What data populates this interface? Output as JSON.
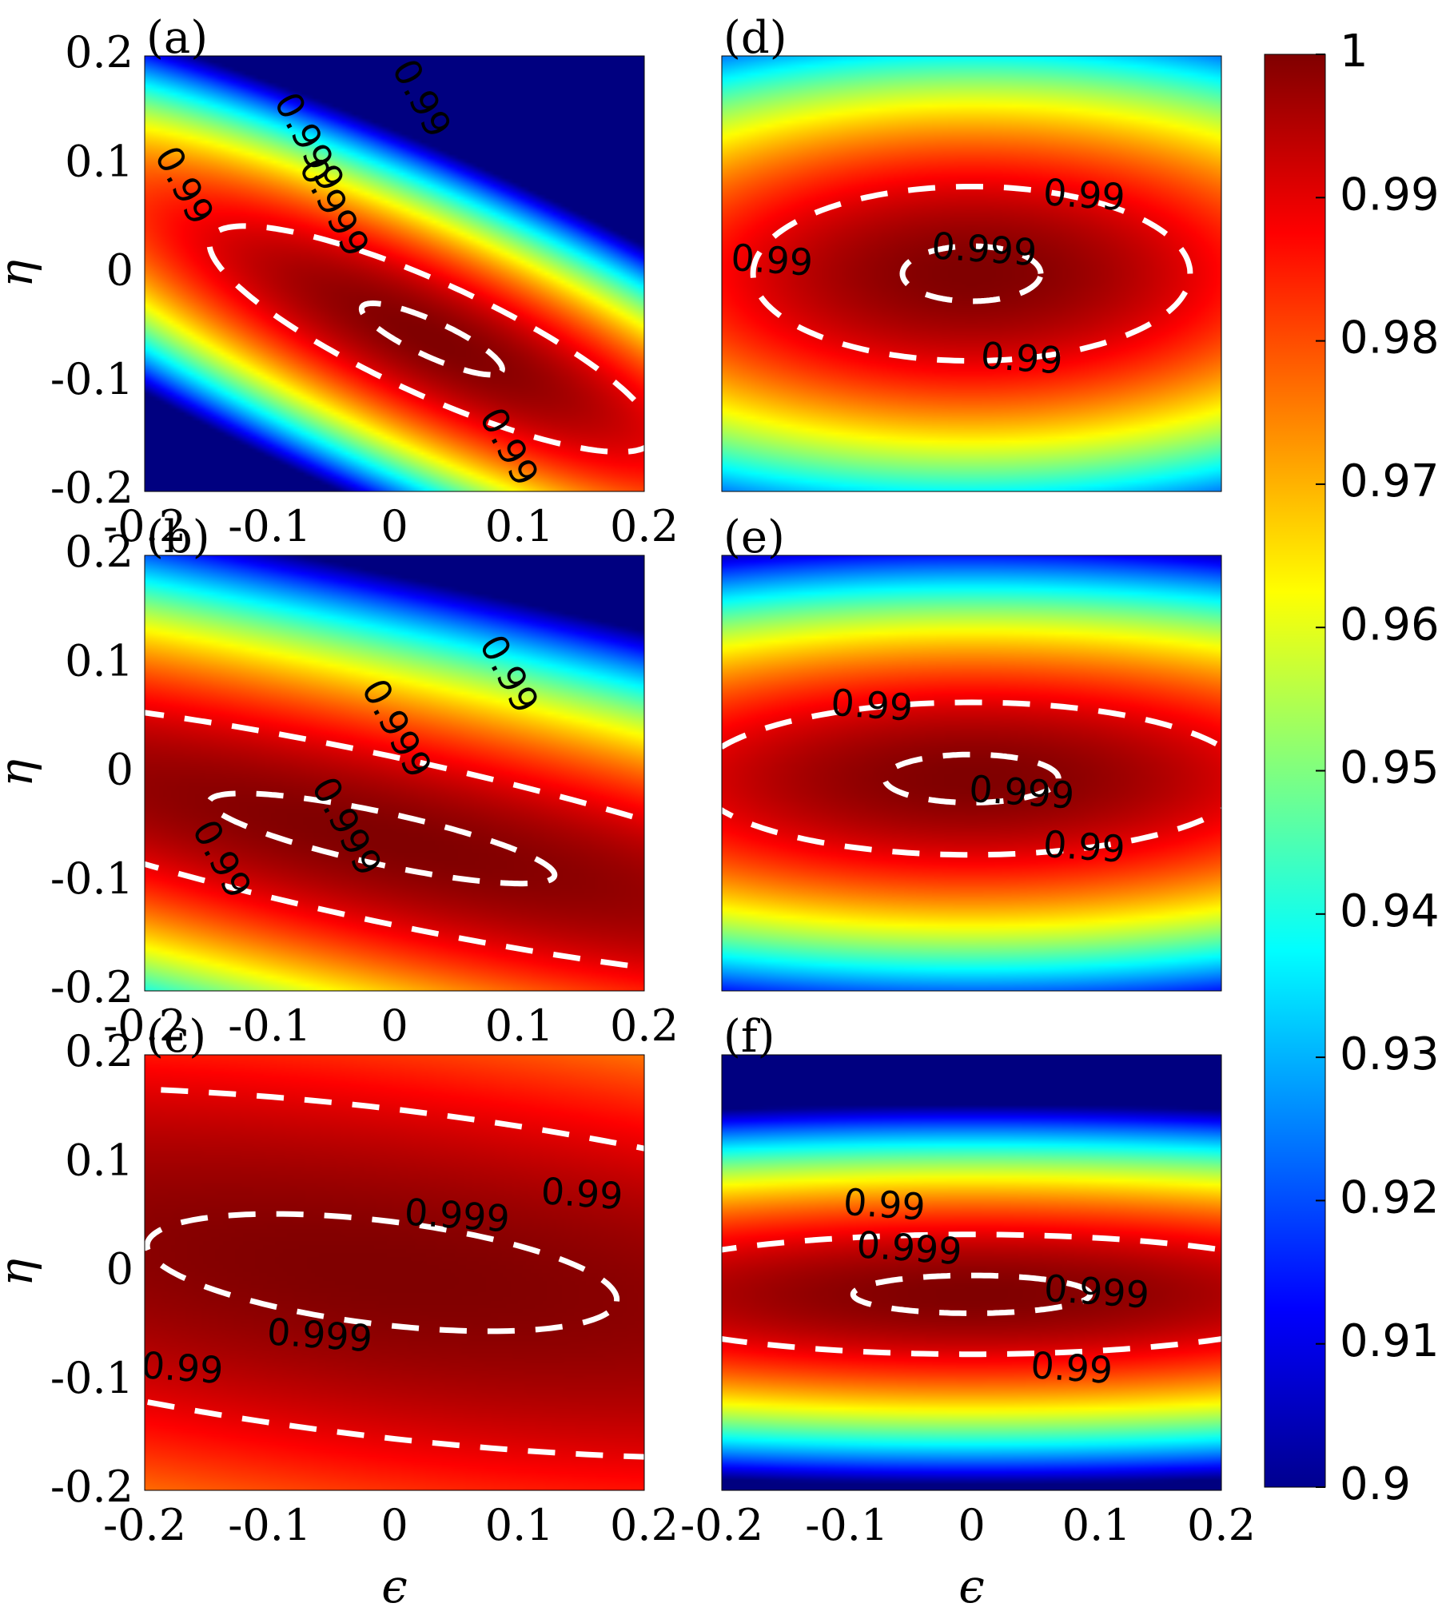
{
  "chart_data": [
    {
      "type": "heatmap",
      "panel": "(a)",
      "xlabel": "",
      "ylabel": "η",
      "x_ticks": [
        "-0.2",
        "-0.1",
        "0",
        "0.1",
        "0.2"
      ],
      "y_ticks": [
        "0.2",
        "0.1",
        "0",
        "-0.1",
        "-0.2"
      ],
      "xlim": [
        -0.2,
        0.2
      ],
      "ylim": [
        -0.2,
        0.2
      ],
      "field": {
        "eps0": 0.03,
        "eta0": -0.06,
        "rot_deg": -28,
        "sx": 0.2,
        "sy": 0.05
      },
      "contours": [
        {
          "level": 0.99,
          "label": "0.99",
          "label_at": [
            [
              0.09,
              -0.16
            ],
            [
              -0.17,
              0.08
            ],
            [
              0.02,
              0.16
            ]
          ]
        },
        {
          "level": 0.999,
          "label": "0.999",
          "label_at": [
            [
              -0.07,
              0.12
            ],
            [
              -0.05,
              0.06
            ]
          ]
        }
      ]
    },
    {
      "type": "heatmap",
      "panel": "(b)",
      "xlabel": "",
      "ylabel": "η",
      "x_ticks": [
        "-0.2",
        "-0.1",
        "0",
        "0.1",
        "0.2"
      ],
      "y_ticks": [
        "0.2",
        "0.1",
        "0",
        "-0.1",
        "-0.2"
      ],
      "xlim": [
        -0.2,
        0.2
      ],
      "ylim": [
        -0.2,
        0.2
      ],
      "field": {
        "eps0": -0.01,
        "eta0": -0.06,
        "rot_deg": -14,
        "sx": 0.45,
        "sy": 0.075
      },
      "contours": [
        {
          "level": 0.99,
          "label": "0.99",
          "label_at": [
            [
              -0.14,
              -0.08
            ],
            [
              0.09,
              0.09
            ]
          ]
        },
        {
          "level": 0.999,
          "label": "0.999",
          "label_at": [
            [
              -0.04,
              -0.05
            ],
            [
              0.0,
              0.04
            ]
          ]
        }
      ]
    },
    {
      "type": "heatmap",
      "panel": "(c)",
      "xlabel": "ϵ",
      "ylabel": "η",
      "x_ticks": [
        "-0.2",
        "-0.1",
        "0",
        "0.1",
        "0.2"
      ],
      "y_ticks": [
        "0.2",
        "0.1",
        "0",
        "-0.1",
        "-0.2"
      ],
      "xlim": [
        -0.2,
        0.2
      ],
      "ylim": [
        -0.2,
        0.2
      ],
      "field": {
        "eps0": -0.01,
        "eta0": 0.0,
        "rot_deg": -8,
        "sx": 0.6,
        "sy": 0.15
      },
      "contours": [
        {
          "level": 0.99,
          "label": "0.99",
          "label_at": [
            [
              -0.17,
              -0.09
            ],
            [
              0.15,
              0.07
            ]
          ]
        },
        {
          "level": 0.999,
          "label": "0.999",
          "label_at": [
            [
              -0.06,
              -0.06
            ],
            [
              0.05,
              0.05
            ]
          ]
        }
      ]
    },
    {
      "type": "heatmap",
      "panel": "(d)",
      "xlabel": "",
      "ylabel": "",
      "x_ticks": [],
      "y_ticks": [],
      "xlim": [
        -0.2,
        0.2
      ],
      "ylim": [
        -0.2,
        0.2
      ],
      "field": {
        "eps0": 0.0,
        "eta0": 0.0,
        "rot_deg": 0,
        "sx": 0.175,
        "sy": 0.08
      },
      "contours": [
        {
          "level": 0.99,
          "label": "0.99",
          "label_at": [
            [
              0.09,
              0.07
            ],
            [
              -0.16,
              0.01
            ],
            [
              0.04,
              -0.08
            ]
          ]
        },
        {
          "level": 0.999,
          "label": "0.999",
          "label_at": [
            [
              0.01,
              0.02
            ]
          ]
        }
      ]
    },
    {
      "type": "heatmap",
      "panel": "(e)",
      "xlabel": "",
      "ylabel": "",
      "x_ticks": [],
      "y_ticks": [],
      "xlim": [
        -0.2,
        0.2
      ],
      "ylim": [
        -0.2,
        0.2
      ],
      "field": {
        "eps0": 0.0,
        "eta0": -0.005,
        "rot_deg": 0,
        "sx": 0.22,
        "sy": 0.07
      },
      "contours": [
        {
          "level": 0.99,
          "label": "0.99",
          "label_at": [
            [
              -0.08,
              0.06
            ],
            [
              0.09,
              -0.07
            ]
          ]
        },
        {
          "level": 0.999,
          "label": "0.999",
          "label_at": [
            [
              0.04,
              -0.02
            ]
          ]
        }
      ]
    },
    {
      "type": "heatmap",
      "panel": "(f)",
      "xlabel": "ϵ",
      "ylabel": "",
      "x_ticks": [
        "-0.2",
        "-0.1",
        "0",
        "0.1",
        "0.2"
      ],
      "y_ticks": [],
      "xlim": [
        -0.2,
        0.2
      ],
      "ylim": [
        -0.2,
        0.2
      ],
      "field": {
        "eps0": 0.0,
        "eta0": -0.02,
        "rot_deg": 0,
        "sx": 0.3,
        "sy": 0.055
      },
      "contours": [
        {
          "level": 0.99,
          "label": "0.99",
          "label_at": [
            [
              -0.07,
              0.06
            ],
            [
              0.08,
              -0.09
            ]
          ]
        },
        {
          "level": 0.999,
          "label": "0.999",
          "label_at": [
            [
              -0.05,
              0.02
            ],
            [
              0.1,
              -0.02
            ]
          ]
        }
      ]
    }
  ],
  "colorbar": {
    "colormap": "jet",
    "range": [
      0.9,
      1.0
    ],
    "ticks": [
      "1",
      "0.99",
      "0.98",
      "0.97",
      "0.96",
      "0.95",
      "0.94",
      "0.93",
      "0.92",
      "0.91",
      "0.9"
    ]
  }
}
